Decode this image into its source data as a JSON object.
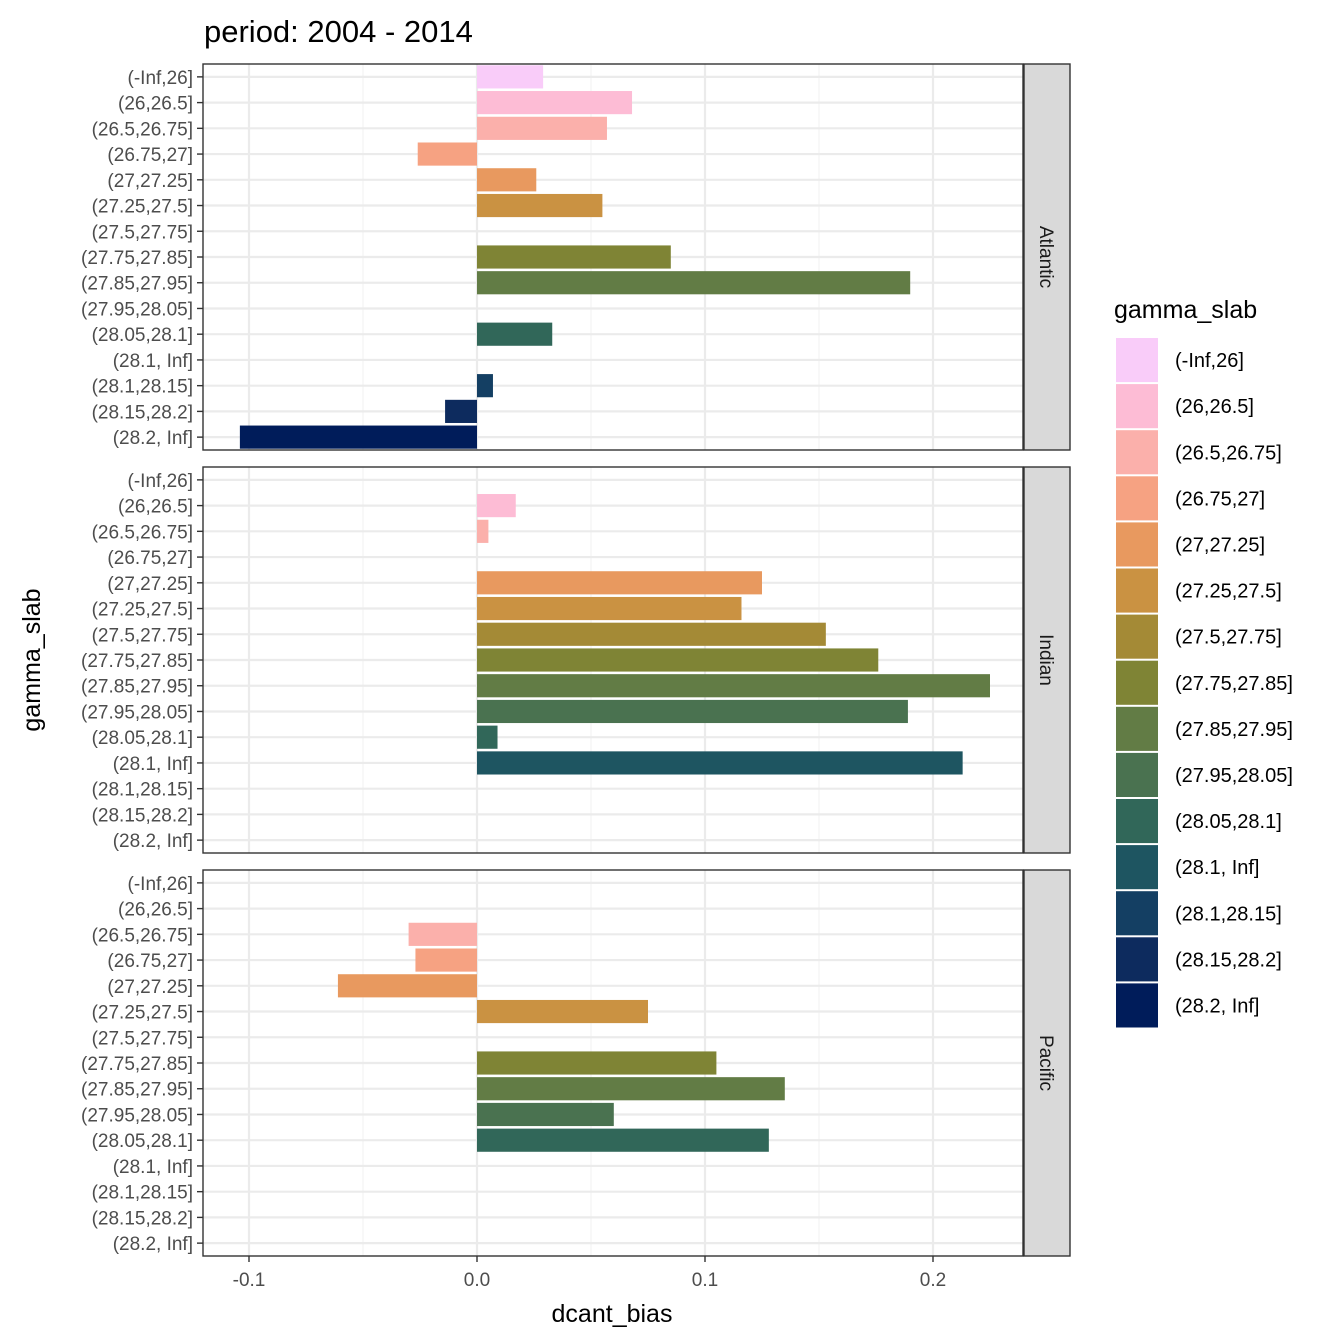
{
  "chart_data": {
    "type": "bar",
    "orientation": "horizontal",
    "facet_by": "basin",
    "title": "period: 2004 - 2014",
    "xlabel": "dcant_bias",
    "ylabel": "gamma_slab",
    "xlim": [
      -0.12,
      0.24
    ],
    "x_ticks": [
      -0.1,
      0.0,
      0.1,
      0.2
    ],
    "x_tick_labels": [
      "-0.1",
      "0.0",
      "0.1",
      "0.2"
    ],
    "grid": true,
    "legend": {
      "title": "gamma_slab",
      "placement": "right"
    },
    "categories": [
      "(-Inf,26]",
      "(26,26.5]",
      "(26.5,26.75]",
      "(26.75,27]",
      "(27,27.25]",
      "(27.25,27.5]",
      "(27.5,27.75]",
      "(27.75,27.85]",
      "(27.85,27.95]",
      "(27.95,28.05]",
      "(28.05,28.1]",
      "(28.1, Inf]",
      "(28.1,28.15]",
      "(28.15,28.2]",
      "(28.2, Inf]"
    ],
    "colors": [
      "#F9CCF9",
      "#FDBCD5",
      "#FBB0AB",
      "#F6A282",
      "#E8995F",
      "#CA9242",
      "#A48A36",
      "#7F8435",
      "#627C45",
      "#4A7250",
      "#316759",
      "#1E5561",
      "#143F63",
      "#0D2B5E",
      "#001C5A"
    ],
    "facets": [
      {
        "name": "Atlantic",
        "values": [
          0.029,
          0.068,
          0.057,
          -0.026,
          0.026,
          0.055,
          null,
          0.085,
          0.19,
          null,
          0.033,
          null,
          0.007,
          -0.014,
          -0.104
        ]
      },
      {
        "name": "Indian",
        "values": [
          null,
          0.017,
          0.005,
          null,
          0.125,
          0.116,
          0.153,
          0.176,
          0.225,
          0.189,
          0.009,
          0.213,
          null,
          null,
          null
        ]
      },
      {
        "name": "Pacific",
        "values": [
          null,
          null,
          -0.03,
          -0.027,
          -0.061,
          0.075,
          null,
          0.105,
          0.135,
          0.06,
          0.128,
          null,
          null,
          null,
          null
        ]
      }
    ]
  }
}
